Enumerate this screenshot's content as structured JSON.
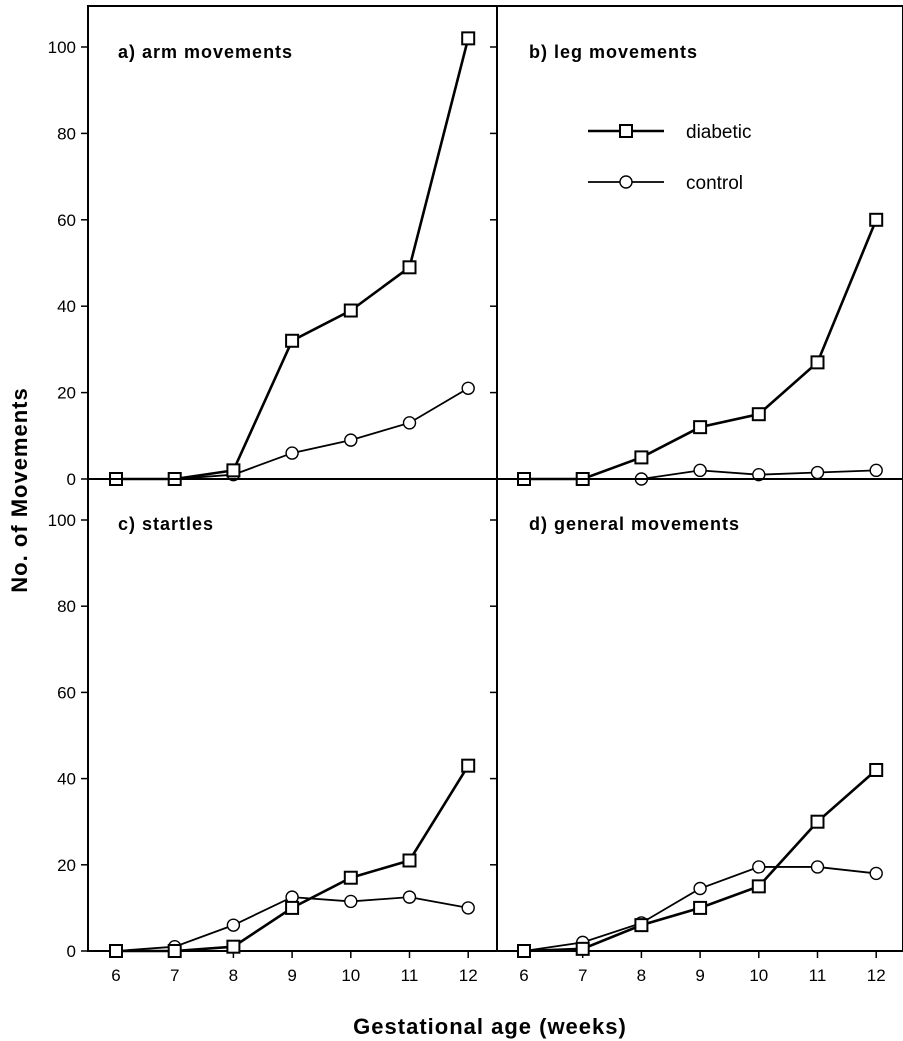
{
  "figure": {
    "xlabel": "Gestational age (weeks)",
    "ylabel": "No. of Movements"
  },
  "legend": {
    "diabetic": "diabetic",
    "control": "control"
  },
  "chart_data": [
    {
      "type": "line",
      "title": "a) arm movements",
      "x": [
        6,
        7,
        8,
        9,
        10,
        11,
        12
      ],
      "ylim": [
        0,
        110
      ],
      "yticks": [
        0,
        20,
        40,
        60,
        80,
        100
      ],
      "series": [
        {
          "name": "diabetic",
          "marker": "square",
          "values": [
            0,
            0,
            2,
            32,
            39,
            49,
            102
          ]
        },
        {
          "name": "control",
          "marker": "circle",
          "values": [
            0,
            0,
            1,
            6,
            9,
            13,
            21
          ]
        }
      ]
    },
    {
      "type": "line",
      "title": "b) leg movements",
      "x": [
        6,
        7,
        8,
        9,
        10,
        11,
        12
      ],
      "ylim": [
        0,
        110
      ],
      "series": [
        {
          "name": "diabetic",
          "marker": "square",
          "values": [
            0,
            0,
            5,
            12,
            15,
            27,
            60
          ]
        },
        {
          "name": "control",
          "marker": "circle",
          "values": [
            0,
            0,
            0,
            2,
            1,
            1.5,
            2
          ]
        }
      ]
    },
    {
      "type": "line",
      "title": "c) startles",
      "x": [
        6,
        7,
        8,
        9,
        10,
        11,
        12
      ],
      "ylim": [
        0,
        110
      ],
      "yticks": [
        0,
        20,
        40,
        60,
        80,
        100
      ],
      "xticks": [
        6,
        7,
        8,
        9,
        10,
        11,
        12
      ],
      "series": [
        {
          "name": "diabetic",
          "marker": "square",
          "values": [
            0,
            0,
            1,
            10,
            17,
            21,
            43
          ]
        },
        {
          "name": "control",
          "marker": "circle",
          "values": [
            0,
            1,
            6,
            12.5,
            11.5,
            12.5,
            10
          ]
        }
      ]
    },
    {
      "type": "line",
      "title": "d) general movements",
      "x": [
        6,
        7,
        8,
        9,
        10,
        11,
        12
      ],
      "ylim": [
        0,
        110
      ],
      "xticks": [
        6,
        7,
        8,
        9,
        10,
        11,
        12
      ],
      "series": [
        {
          "name": "diabetic",
          "marker": "square",
          "values": [
            0,
            0.5,
            6,
            10,
            15,
            30,
            42
          ]
        },
        {
          "name": "control",
          "marker": "circle",
          "values": [
            0,
            2,
            6.5,
            14.5,
            19.5,
            19.5,
            18
          ]
        }
      ]
    }
  ]
}
